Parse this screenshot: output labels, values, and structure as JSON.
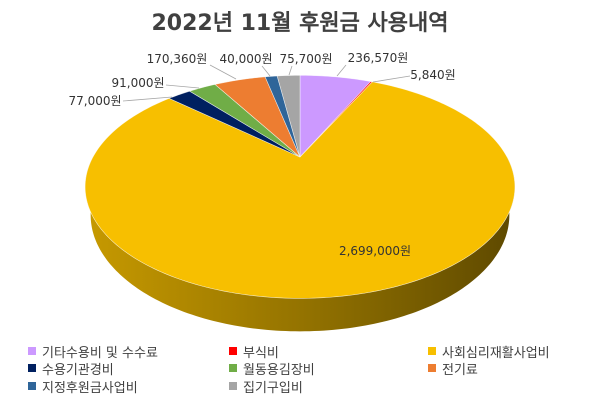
{
  "chart_data": {
    "type": "pie",
    "three_d": true,
    "title": "2022년 11월 후원금 사용내역",
    "categories": [
      "기타수용비 및 수수료",
      "부식비",
      "사회심리재활사업비",
      "수용기관경비",
      "월동용김장비",
      "전기료",
      "지정후원금사업비",
      "집기구입비"
    ],
    "values": [
      236570,
      5840,
      2699000,
      77000,
      91000,
      170360,
      40000,
      75700
    ],
    "unit": "원",
    "colors": [
      "#CC99FF",
      "#FF0000",
      "#F7BF00",
      "#002060",
      "#70AD47",
      "#ED7D31",
      "#2F6599",
      "#A5A5A5"
    ],
    "legend_position": "bottom"
  }
}
